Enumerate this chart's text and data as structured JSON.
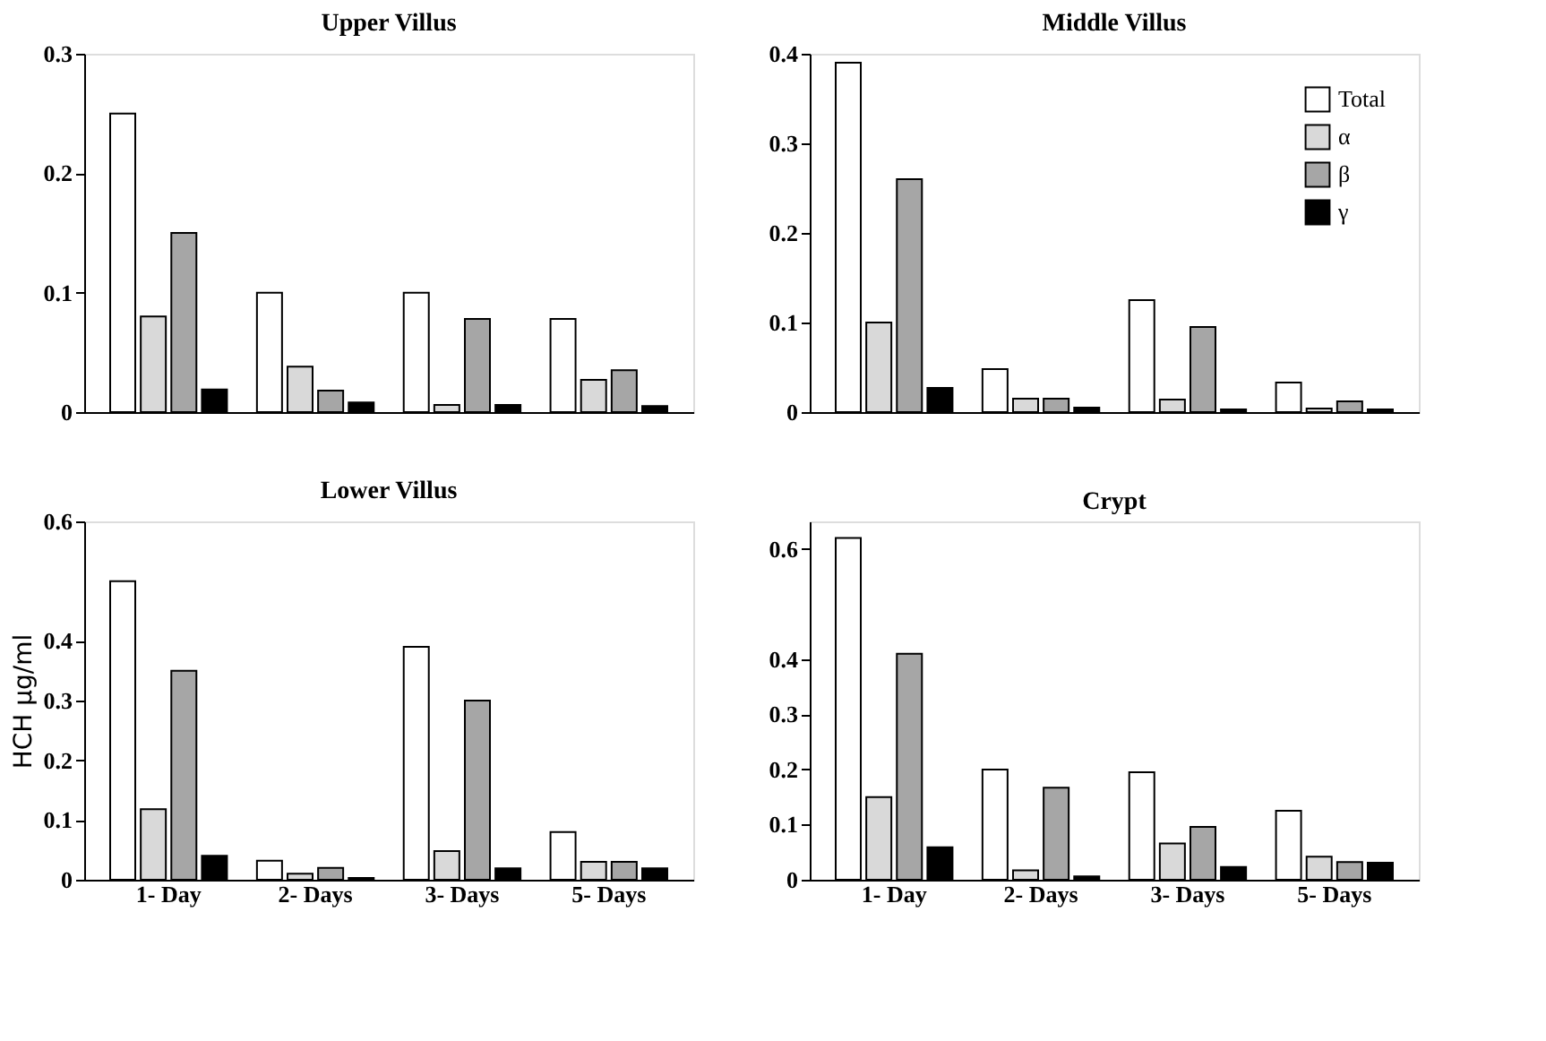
{
  "chart_data": [
    {
      "type": "bar",
      "title": "Upper Villus",
      "categories": [
        null,
        null,
        null,
        null
      ],
      "ylim": [
        0,
        0.3
      ],
      "yticks": [
        0,
        0.1,
        0.2,
        0.3
      ],
      "grid": false,
      "legend": false,
      "series": [
        {
          "color": "#ffffff",
          "values": [
            0.25,
            0.1,
            0.1,
            0.078
          ]
        },
        {
          "color": "#d9d9d9",
          "values": [
            0.08,
            0.038,
            0.006,
            0.027
          ]
        },
        {
          "color": "#a6a6a6",
          "values": [
            0.15,
            0.018,
            0.078,
            0.035
          ]
        },
        {
          "color": "#000000",
          "values": [
            0.019,
            0.008,
            0.006,
            0.005
          ]
        }
      ]
    },
    {
      "type": "bar",
      "title": "Middle Villus",
      "categories": [
        null,
        null,
        null,
        null
      ],
      "ylim": [
        0,
        0.4
      ],
      "yticks": [
        0,
        0.1,
        0.2,
        0.3,
        0.4
      ],
      "grid": false,
      "legend": "top right",
      "series": [
        {
          "name": "Total",
          "color": "#ffffff",
          "values": [
            0.39,
            0.048,
            0.125,
            0.033
          ]
        },
        {
          "name": "α",
          "color": "#d9d9d9",
          "values": [
            0.1,
            0.015,
            0.014,
            0.004
          ]
        },
        {
          "name": "β",
          "color": "#a6a6a6",
          "values": [
            0.26,
            0.015,
            0.095,
            0.012
          ]
        },
        {
          "name": "γ",
          "color": "#000000",
          "values": [
            0.027,
            0.005,
            0.003,
            0.003
          ]
        }
      ]
    },
    {
      "type": "bar",
      "title": "Lower Villus",
      "ylabel": "HCH µg/ml",
      "categories": [
        "1- Day",
        "2- Days",
        "3- Days",
        "5- Days"
      ],
      "ylim": [
        0,
        0.6
      ],
      "yticks": [
        0,
        0.1,
        0.2,
        0.3,
        0.4,
        0.6
      ],
      "grid": false,
      "legend": false,
      "series": [
        {
          "color": "#ffffff",
          "values": [
            0.5,
            0.032,
            0.39,
            0.08
          ]
        },
        {
          "color": "#d9d9d9",
          "values": [
            0.118,
            0.01,
            0.048,
            0.03
          ]
        },
        {
          "color": "#a6a6a6",
          "values": [
            0.35,
            0.02,
            0.3,
            0.03
          ]
        },
        {
          "color": "#000000",
          "values": [
            0.04,
            0.003,
            0.019,
            0.019
          ]
        }
      ]
    },
    {
      "type": "bar",
      "title": "Crypt",
      "categories": [
        "1- Day",
        "2- Days",
        "3- Days",
        "5- Days"
      ],
      "ylim": [
        0,
        0.65
      ],
      "yticks": [
        0,
        0.1,
        0.2,
        0.3,
        0.4,
        0.6
      ],
      "grid": false,
      "legend": false,
      "series": [
        {
          "color": "#ffffff",
          "values": [
            0.62,
            0.2,
            0.195,
            0.125
          ]
        },
        {
          "color": "#d9d9d9",
          "values": [
            0.15,
            0.017,
            0.066,
            0.042
          ]
        },
        {
          "color": "#a6a6a6",
          "values": [
            0.41,
            0.167,
            0.096,
            0.032
          ]
        },
        {
          "color": "#000000",
          "values": [
            0.059,
            0.006,
            0.023,
            0.031
          ]
        }
      ]
    }
  ]
}
